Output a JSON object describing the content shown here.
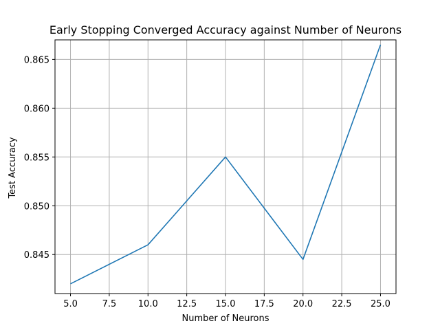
{
  "chart_data": {
    "type": "line",
    "title": "Early Stopping Converged Accuracy against Number of Neurons",
    "xlabel": "Number of Neurons",
    "ylabel": "Test Accuracy",
    "xlim": [
      4.0,
      26.0
    ],
    "ylim": [
      0.841,
      0.867
    ],
    "xticks": [
      5.0,
      7.5,
      10.0,
      12.5,
      15.0,
      17.5,
      20.0,
      22.5,
      25.0
    ],
    "xtick_labels": [
      "5.0",
      "7.5",
      "10.0",
      "12.5",
      "15.0",
      "17.5",
      "20.0",
      "22.5",
      "25.0"
    ],
    "yticks": [
      0.845,
      0.85,
      0.855,
      0.86,
      0.865
    ],
    "ytick_labels": [
      "0.845",
      "0.850",
      "0.855",
      "0.860",
      "0.865"
    ],
    "grid": true,
    "series": [
      {
        "color": "#1f77b4",
        "x": [
          5,
          10,
          15,
          20,
          25
        ],
        "values": [
          0.842,
          0.846,
          0.855,
          0.8445,
          0.8665
        ]
      }
    ]
  }
}
